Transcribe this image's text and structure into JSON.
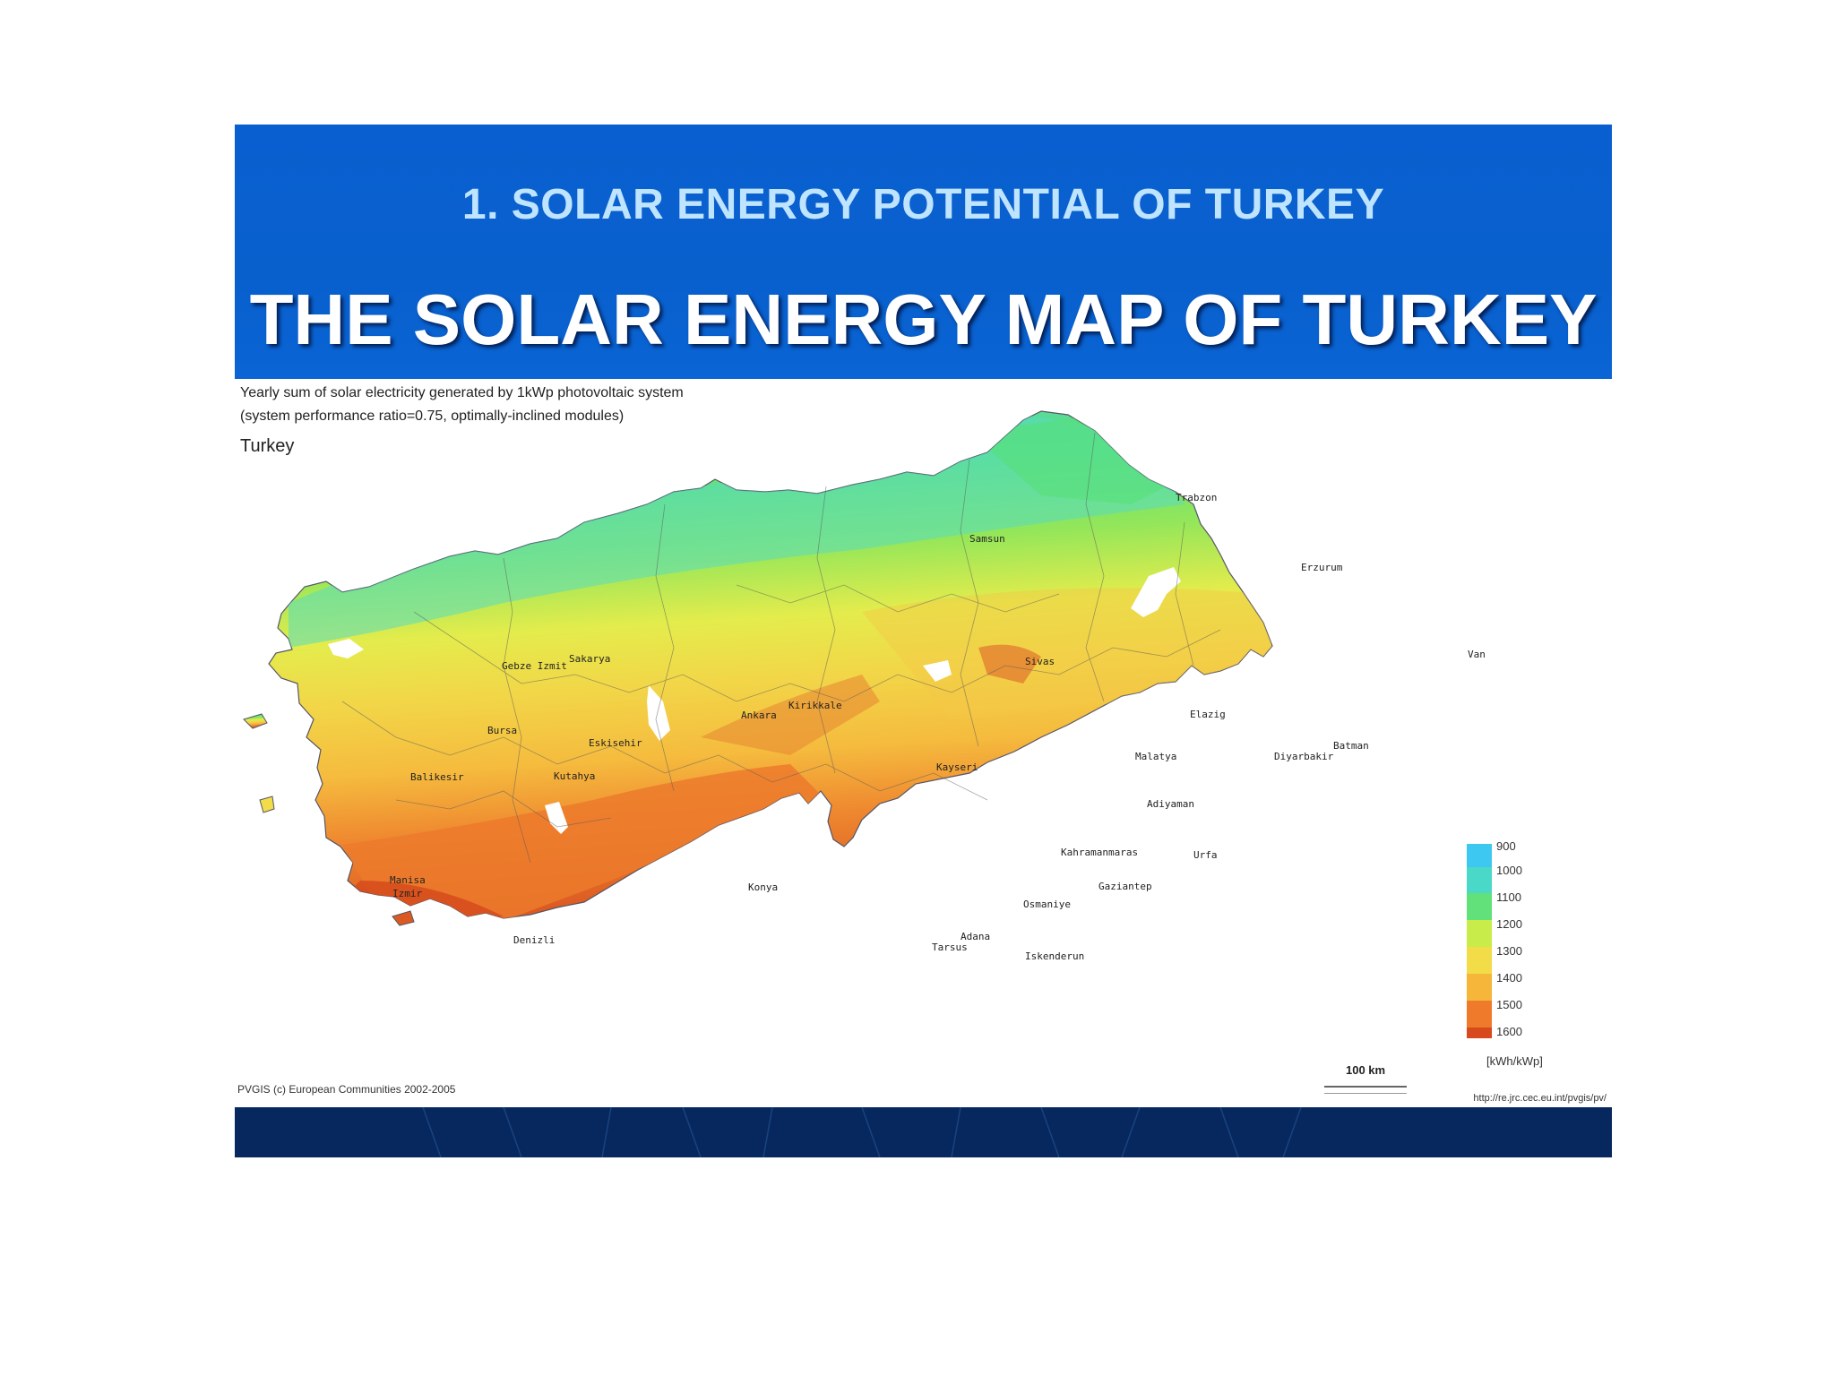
{
  "header": {
    "subtitle": "1. SOLAR ENERGY POTENTIAL OF TURKEY",
    "title": "THE SOLAR ENERGY MAP OF TURKEY"
  },
  "map": {
    "caption_line1": "Yearly sum of solar electricity generated by 1kWp photovoltaic system",
    "caption_line2": "(system performance ratio=0.75, optimally-inclined modules)",
    "region": "Turkey",
    "credit": "PVGIS (c) European Communities 2002-2005",
    "url": "http://re.jrc.cec.eu.int/pvgis/pv/",
    "scale": "100 km",
    "cities": {
      "trabzon": "Trabzon",
      "samsun": "Samsun",
      "erzurum": "Erzurum",
      "sakarya": "Sakarya",
      "gebze_izmit": "Gebze Izmit",
      "sivas": "Sivas",
      "van": "Van",
      "kirikkale": "Kirikkale",
      "ankara": "Ankara",
      "elazig": "Elazig",
      "bursa": "Bursa",
      "eskisehir": "Eskisehir",
      "batman": "Batman",
      "diyarbakir": "Diyarbakir",
      "balikesir": "Balikesir",
      "kutahya": "Kutahya",
      "kayseri": "Kayseri",
      "malatya": "Malatya",
      "adiyaman": "Adiyaman",
      "kahramanmaras": "Kahramanmaras",
      "urfa": "Urfa",
      "manisa": "Manisa",
      "izmir": "Izmir",
      "konya": "Konya",
      "gaziantep": "Gaziantep",
      "osmaniye": "Osmaniye",
      "denizli": "Denizli",
      "adana": "Adana",
      "tarsus": "Tarsus",
      "iskenderun": "Iskenderun"
    }
  },
  "legend": {
    "items": [
      {
        "label": "900",
        "color": "#3cc8f0"
      },
      {
        "label": "1000",
        "color": "#4ad8c8"
      },
      {
        "label": "1100",
        "color": "#62e07a"
      },
      {
        "label": "1200",
        "color": "#c8ec4a"
      },
      {
        "label": "1300",
        "color": "#f2dc48"
      },
      {
        "label": "1400",
        "color": "#f5b63a"
      },
      {
        "label": "1500",
        "color": "#ef7a2c"
      },
      {
        "label": "1600",
        "color": "#d64a1e"
      }
    ],
    "unit": "[kWh/kWp]"
  },
  "colors": {
    "header_bg": "#0860cd",
    "subtitle": "#bfe4ff",
    "footer_bg": "#06285e"
  }
}
